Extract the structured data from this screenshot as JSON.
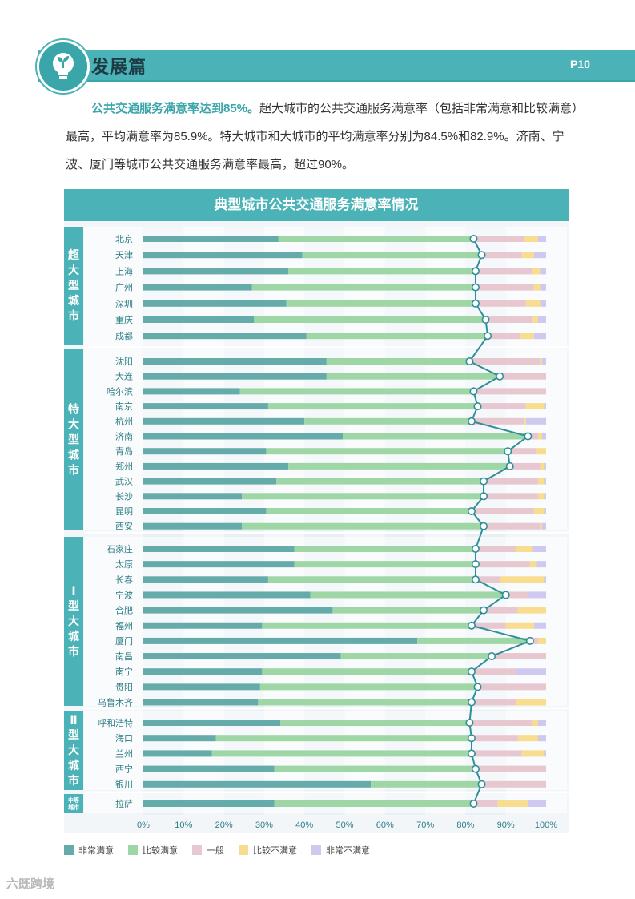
{
  "header": {
    "title": "发展篇",
    "page_no": "P10",
    "logo_icon": "lightbulb-seedling-icon"
  },
  "intro": {
    "highlight": "公共交通服务满意率达到85%。",
    "text": "超大城市的公共交通服务满意率（包括非常满意和比较满意）最高，平均满意率为85.9%。特大城市和大城市的平均满意率分别为84.5%和82.9%。济南、宁波、厦门等城市公共交通服务满意率最高，超过90%。"
  },
  "watermark": "六既跨境",
  "colors": {
    "accent": "#4bb3b7",
    "very_satisfied": "#64abaa",
    "satisfied": "#9fd6a6",
    "neutral": "#e8c8d0",
    "dissatisfied": "#f8dc8f",
    "very_dissatisfied": "#cfc8ef",
    "marker_line": "#2f8f98"
  },
  "chart_data": {
    "type": "bar",
    "orientation": "horizontal",
    "stacked": true,
    "title": "典型城市公共交通服务满意率情况",
    "xlim": [
      0,
      100
    ],
    "x_ticks": [
      "0%",
      "10%",
      "20%",
      "30%",
      "40%",
      "50%",
      "60%",
      "70%",
      "80%",
      "90%",
      "100%"
    ],
    "legend": [
      "非常满意",
      "比较满意",
      "一般",
      "比较不满意",
      "非常不满意"
    ],
    "legend_position": "bottom",
    "marker": "satisfaction rate (非常满意+比较满意), connected by a line",
    "groups": [
      {
        "label": "超大型城市",
        "cities": [
          {
            "name": "北京",
            "values": [
              33.5,
              48.5,
              12.5,
              3.5,
              2.0
            ]
          },
          {
            "name": "天津",
            "values": [
              39.5,
              44.5,
              10.0,
              3.0,
              3.0
            ]
          },
          {
            "name": "上海",
            "values": [
              36.0,
              46.5,
              14.0,
              2.0,
              1.5
            ]
          },
          {
            "name": "广州",
            "values": [
              27.0,
              55.5,
              14.5,
              1.5,
              1.5
            ]
          },
          {
            "name": "深圳",
            "values": [
              35.5,
              47.0,
              12.5,
              3.5,
              1.5
            ]
          },
          {
            "name": "重庆",
            "values": [
              27.5,
              57.5,
              11.5,
              1.5,
              2.0
            ]
          },
          {
            "name": "成都",
            "values": [
              40.5,
              45.0,
              8.0,
              3.5,
              3.0
            ]
          }
        ]
      },
      {
        "label": "特大型城市",
        "cities": [
          {
            "name": "沈阳",
            "values": [
              45.5,
              35.5,
              17.5,
              0.5,
              1.0
            ]
          },
          {
            "name": "大连",
            "values": [
              45.5,
              43.0,
              11.5,
              0,
              0
            ]
          },
          {
            "name": "哈尔滨",
            "values": [
              24.0,
              58.0,
              18.0,
              0,
              0
            ]
          },
          {
            "name": "南京",
            "values": [
              31.0,
              52.0,
              12.0,
              4.5,
              0.5
            ]
          },
          {
            "name": "杭州",
            "values": [
              40.0,
              41.5,
              13.0,
              0.5,
              5.0
            ]
          },
          {
            "name": "济南",
            "values": [
              49.5,
              46.0,
              2.5,
              1.0,
              1.0
            ]
          },
          {
            "name": "青岛",
            "values": [
              30.5,
              60.0,
              7.0,
              2.5,
              0
            ]
          },
          {
            "name": "郑州",
            "values": [
              36.0,
              55.0,
              7.5,
              1.0,
              0.5
            ]
          },
          {
            "name": "武汉",
            "values": [
              33.0,
              51.5,
              13.5,
              1.5,
              0.5
            ]
          },
          {
            "name": "长沙",
            "values": [
              24.5,
              60.0,
              13.5,
              1.5,
              0.5
            ]
          },
          {
            "name": "昆明",
            "values": [
              30.5,
              51.0,
              15.5,
              2.5,
              0.5
            ]
          },
          {
            "name": "西安",
            "values": [
              24.5,
              60.0,
              14.0,
              0.5,
              1.0
            ]
          }
        ]
      },
      {
        "label": "Ⅰ型大城市",
        "cities": [
          {
            "name": "石家庄",
            "values": [
              37.5,
              45.0,
              10.0,
              4.0,
              3.5
            ]
          },
          {
            "name": "太原",
            "values": [
              37.5,
              45.0,
              13.5,
              1.5,
              2.5
            ]
          },
          {
            "name": "长春",
            "values": [
              31.0,
              51.5,
              6.0,
              11.0,
              0.5
            ]
          },
          {
            "name": "宁波",
            "values": [
              41.5,
              48.5,
              5.5,
              0,
              4.5
            ]
          },
          {
            "name": "合肥",
            "values": [
              47.0,
              37.5,
              8.5,
              7.0,
              0
            ]
          },
          {
            "name": "福州",
            "values": [
              29.5,
              52.0,
              8.5,
              7.0,
              3.0
            ]
          },
          {
            "name": "厦门",
            "values": [
              68.0,
              28.0,
              2.0,
              2.0,
              0
            ]
          },
          {
            "name": "南昌",
            "values": [
              49.0,
              37.5,
              13.5,
              0,
              0
            ]
          },
          {
            "name": "南宁",
            "values": [
              29.5,
              52.0,
              11.0,
              0,
              7.5
            ]
          },
          {
            "name": "贵阳",
            "values": [
              29.0,
              54.0,
              17.0,
              0,
              0
            ]
          },
          {
            "name": "乌鲁木齐",
            "values": [
              28.5,
              53.0,
              11.0,
              7.5,
              0
            ]
          }
        ]
      },
      {
        "label": "Ⅱ型大城市",
        "cities": [
          {
            "name": "呼和浩特",
            "values": [
              34.0,
              47.0,
              15.5,
              1.5,
              2.0
            ]
          },
          {
            "name": "海口",
            "values": [
              18.0,
              63.5,
              11.5,
              5.0,
              2.0
            ]
          },
          {
            "name": "兰州",
            "values": [
              17.0,
              64.5,
              12.5,
              5.5,
              0.5
            ]
          },
          {
            "name": "西宁",
            "values": [
              32.5,
              50.0,
              17.5,
              0,
              0
            ]
          },
          {
            "name": "银川",
            "values": [
              56.5,
              27.5,
              16.0,
              0,
              0
            ]
          }
        ]
      },
      {
        "label": "中等城市",
        "cities": [
          {
            "name": "拉萨",
            "values": [
              32.5,
              49.5,
              6.0,
              7.5,
              4.5
            ]
          }
        ]
      }
    ]
  }
}
